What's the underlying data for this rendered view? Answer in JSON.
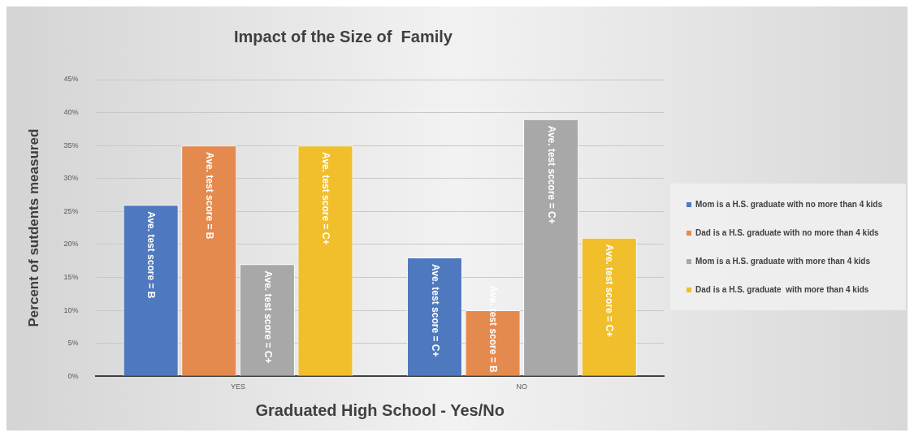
{
  "chart_data": {
    "type": "bar",
    "title": "Impact of the Size of  Family",
    "xlabel": "Graduated High School - Yes/No",
    "ylabel": "Percent of sutdents measured",
    "categories": [
      "YES",
      "NO"
    ],
    "series": [
      {
        "name": "Mom is a H.S. graduate with no more than 4 kids",
        "color": "#4f79be",
        "values": [
          26,
          18
        ],
        "value_labels": [
          "Ave. test score = B",
          "Ave. test score = C+"
        ]
      },
      {
        "name": "Dad is a H.S. graduate with no more than 4 kids",
        "color": "#e58a4e",
        "values": [
          35,
          10
        ],
        "value_labels": [
          "Ave. test score = B",
          "Ave. test score = B"
        ]
      },
      {
        "name": "Mom is a H.S. graduate with more than 4 kids",
        "color": "#a8a8a8",
        "values": [
          17,
          39
        ],
        "value_labels": [
          "Ave. test score = C+",
          "Ave. test sccore = C+"
        ]
      },
      {
        "name": "Dad is a H.S. graduate  with more than 4 kids",
        "color": "#f1bf2b",
        "values": [
          35,
          21
        ],
        "value_labels": [
          "Ave. test score = C+",
          "Ave. test score = C+"
        ]
      }
    ],
    "ylim": [
      0,
      45
    ],
    "yticks": [
      {
        "value": 0,
        "label": "0%"
      },
      {
        "value": 5,
        "label": "5%"
      },
      {
        "value": 10,
        "label": "10%"
      },
      {
        "value": 15,
        "label": "15%"
      },
      {
        "value": 20,
        "label": "20%"
      },
      {
        "value": 25,
        "label": "25%"
      },
      {
        "value": 30,
        "label": "30%"
      },
      {
        "value": 35,
        "label": "35%"
      },
      {
        "value": 40,
        "label": "40%"
      },
      {
        "value": 45,
        "label": "45%"
      }
    ],
    "grid": "y",
    "legend": "right"
  }
}
